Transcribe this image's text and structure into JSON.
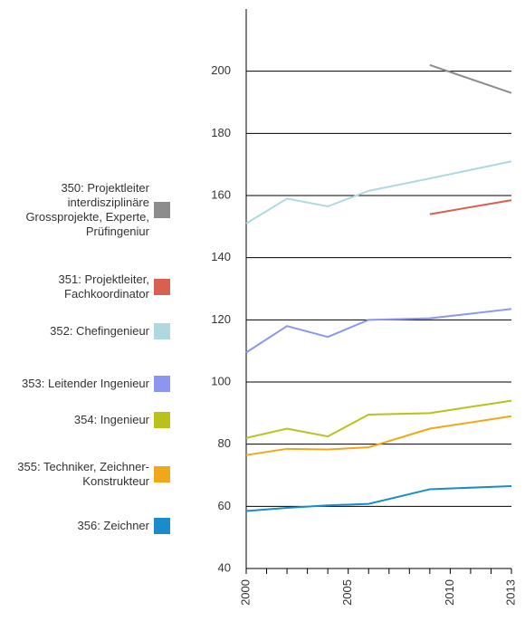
{
  "chart_data": {
    "type": "line",
    "x": [
      2000,
      2002,
      2004,
      2006,
      2009,
      2013
    ],
    "series": [
      {
        "name": "350: Projektleiter interdisziplinäre Grossprojekte, Experte, Prüfingeniur",
        "color": "#8c8c8c",
        "values": [
          null,
          null,
          null,
          null,
          202,
          193
        ]
      },
      {
        "name": "351: Projektleiter, Fachkoordinator",
        "color": "#d9604f",
        "values": [
          null,
          null,
          null,
          null,
          154,
          158.5
        ]
      },
      {
        "name": "352: Chefingenieur",
        "color": "#aedadf",
        "values": [
          151,
          159,
          156.5,
          161.5,
          165.5,
          171
        ]
      },
      {
        "name": "353: Leitender Ingenieur",
        "color": "#8c96f0",
        "values": [
          109.5,
          118,
          114.5,
          120,
          120.5,
          123.5
        ]
      },
      {
        "name": "354: Ingenieur",
        "color": "#b8c21a",
        "values": [
          82,
          85,
          82.5,
          89.5,
          90,
          94
        ]
      },
      {
        "name": "355: Techniker, Zeichner-Kon­strukteur",
        "color": "#f0a818",
        "values": [
          76.5,
          78.5,
          78.3,
          79,
          85,
          89
        ]
      },
      {
        "name": "356: Zeichner",
        "color": "#1a8ccc",
        "values": [
          58.5,
          59.5,
          60.3,
          60.8,
          65.5,
          66.5
        ]
      }
    ],
    "xlim": [
      2000,
      2013
    ],
    "xticks": [
      2000,
      2005,
      2010,
      2013
    ],
    "xminorticks": [
      2000,
      2001,
      2002,
      2003,
      2004,
      2005,
      2006,
      2007,
      2008,
      2009,
      2010,
      2011,
      2012,
      2013
    ],
    "ylim": [
      40,
      220
    ],
    "yticks": [
      40,
      60,
      80,
      100,
      120,
      140,
      160,
      180,
      200
    ],
    "grid": true
  }
}
